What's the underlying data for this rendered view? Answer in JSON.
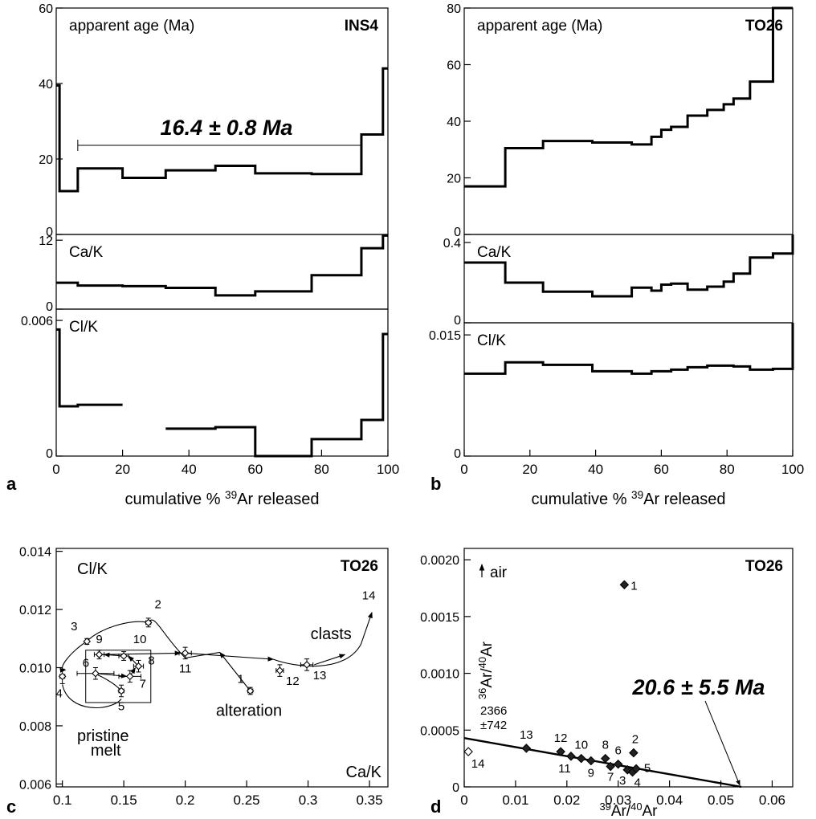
{
  "panel_letters": {
    "a": "a",
    "b": "b",
    "c": "c",
    "d": "d"
  },
  "chart_data": [
    {
      "id": "a",
      "type": "line",
      "sample": "INS4",
      "xlabel": "cumulative % 39Ar released",
      "xlabel_parts": {
        "pre": "cumulative % ",
        "sup": "39",
        "post": "Ar released"
      },
      "xlim": [
        0,
        100
      ],
      "xticks": [
        0,
        20,
        40,
        60,
        80,
        100
      ],
      "plateau": {
        "label": "16.4 ± 0.8 Ma",
        "x_start": 6.5,
        "x_end": 92
      },
      "subplots": [
        {
          "key": "age",
          "label": "apparent age (Ma)",
          "ylim": [
            0,
            60
          ],
          "yticks": [
            0,
            20,
            40,
            60
          ],
          "steps": [
            {
              "x0": 0,
              "x1": 1,
              "y": 39.5
            },
            {
              "x0": 1,
              "x1": 6.5,
              "y": 11.5
            },
            {
              "x0": 6.5,
              "x1": 20,
              "y": 17.5
            },
            {
              "x0": 20,
              "x1": 33,
              "y": 15
            },
            {
              "x0": 33,
              "x1": 48,
              "y": 17
            },
            {
              "x0": 48,
              "x1": 60,
              "y": 18.2
            },
            {
              "x0": 60,
              "x1": 77,
              "y": 16.2
            },
            {
              "x0": 77,
              "x1": 92,
              "y": 16
            },
            {
              "x0": 92,
              "x1": 98.5,
              "y": 26.5
            },
            {
              "x0": 98.5,
              "x1": 100,
              "y": 44
            }
          ]
        },
        {
          "key": "cak",
          "label": "Ca/K",
          "ylim": [
            0,
            13
          ],
          "yticks": [
            0,
            12
          ],
          "steps": [
            {
              "x0": 0,
              "x1": 6.5,
              "y": 4.6
            },
            {
              "x0": 6.5,
              "x1": 20,
              "y": 4.1
            },
            {
              "x0": 20,
              "x1": 33,
              "y": 4.0
            },
            {
              "x0": 33,
              "x1": 48,
              "y": 3.7
            },
            {
              "x0": 48,
              "x1": 60,
              "y": 2.4
            },
            {
              "x0": 60,
              "x1": 77,
              "y": 3.1
            },
            {
              "x0": 77,
              "x1": 92,
              "y": 5.9
            },
            {
              "x0": 92,
              "x1": 98.5,
              "y": 10.6
            },
            {
              "x0": 98.5,
              "x1": 100,
              "y": 12.8
            }
          ]
        },
        {
          "key": "clk",
          "label": "Cl/K",
          "ylim": [
            0,
            0.0065
          ],
          "yticks": [
            0,
            0.006
          ],
          "steps": [
            {
              "x0": 0,
              "x1": 1,
              "y": 0.0056
            },
            {
              "x0": 1,
              "x1": 6.5,
              "y": 0.0022
            },
            {
              "x0": 6.5,
              "x1": 20,
              "y": 0.00227
            },
            {
              "x0": 33,
              "x1": 48,
              "y": 0.00121
            },
            {
              "x0": 48,
              "x1": 60,
              "y": 0.00128
            },
            {
              "x0": 60,
              "x1": 77,
              "y": 0.0
            },
            {
              "x0": 77,
              "x1": 92,
              "y": 0.00075
            },
            {
              "x0": 92,
              "x1": 98.5,
              "y": 0.0016
            },
            {
              "x0": 98.5,
              "x1": 100,
              "y": 0.0054
            }
          ]
        }
      ]
    },
    {
      "id": "b",
      "type": "line",
      "sample": "TO26",
      "xlabel": "cumulative % 39Ar released",
      "xlabel_parts": {
        "pre": "cumulative % ",
        "sup": "39",
        "post": "Ar released"
      },
      "xlim": [
        0,
        100
      ],
      "xticks": [
        0,
        20,
        40,
        60,
        80,
        100
      ],
      "subplots": [
        {
          "key": "age",
          "label": "apparent age (Ma)",
          "ylim": [
            0,
            80
          ],
          "yticks": [
            0,
            20,
            40,
            60,
            80
          ],
          "steps": [
            {
              "x0": 0,
              "x1": 12.5,
              "y": 17
            },
            {
              "x0": 12.5,
              "x1": 24,
              "y": 30.5
            },
            {
              "x0": 24,
              "x1": 39,
              "y": 33
            },
            {
              "x0": 39,
              "x1": 51,
              "y": 32.5
            },
            {
              "x0": 51,
              "x1": 57,
              "y": 31.8
            },
            {
              "x0": 57,
              "x1": 60,
              "y": 34.5
            },
            {
              "x0": 60,
              "x1": 63,
              "y": 37
            },
            {
              "x0": 63,
              "x1": 68,
              "y": 38
            },
            {
              "x0": 68,
              "x1": 74,
              "y": 42
            },
            {
              "x0": 74,
              "x1": 79,
              "y": 44
            },
            {
              "x0": 79,
              "x1": 82,
              "y": 46
            },
            {
              "x0": 82,
              "x1": 87,
              "y": 48
            },
            {
              "x0": 87,
              "x1": 94,
              "y": 54
            },
            {
              "x0": 94,
              "x1": 100,
              "y": 80
            }
          ]
        },
        {
          "key": "cak",
          "label": "Ca/K",
          "ylim": [
            0,
            0.44
          ],
          "yticks": [
            0,
            0.4
          ],
          "steps": [
            {
              "x0": 0,
              "x1": 12.5,
              "y": 0.3
            },
            {
              "x0": 12.5,
              "x1": 24,
              "y": 0.2
            },
            {
              "x0": 24,
              "x1": 39,
              "y": 0.155
            },
            {
              "x0": 39,
              "x1": 51,
              "y": 0.132
            },
            {
              "x0": 51,
              "x1": 57,
              "y": 0.175
            },
            {
              "x0": 57,
              "x1": 60,
              "y": 0.16
            },
            {
              "x0": 60,
              "x1": 63,
              "y": 0.19
            },
            {
              "x0": 63,
              "x1": 68,
              "y": 0.195
            },
            {
              "x0": 68,
              "x1": 74,
              "y": 0.165
            },
            {
              "x0": 74,
              "x1": 79,
              "y": 0.18
            },
            {
              "x0": 79,
              "x1": 82,
              "y": 0.205
            },
            {
              "x0": 82,
              "x1": 87,
              "y": 0.245
            },
            {
              "x0": 87,
              "x1": 94,
              "y": 0.325
            },
            {
              "x0": 94,
              "x1": 100,
              "y": 0.345
            },
            {
              "x0": 100,
              "x1": 100,
              "y": 0.44
            }
          ]
        },
        {
          "key": "clk",
          "label": "Cl/K",
          "ylim": [
            0,
            0.0165
          ],
          "yticks": [
            0,
            0.015
          ],
          "steps": [
            {
              "x0": 0,
              "x1": 12.5,
              "y": 0.0102
            },
            {
              "x0": 12.5,
              "x1": 24,
              "y": 0.0116
            },
            {
              "x0": 24,
              "x1": 39,
              "y": 0.0113
            },
            {
              "x0": 39,
              "x1": 51,
              "y": 0.0105
            },
            {
              "x0": 51,
              "x1": 57,
              "y": 0.0102
            },
            {
              "x0": 57,
              "x1": 63,
              "y": 0.0105
            },
            {
              "x0": 63,
              "x1": 68,
              "y": 0.0107
            },
            {
              "x0": 68,
              "x1": 74,
              "y": 0.011
            },
            {
              "x0": 74,
              "x1": 82,
              "y": 0.0112
            },
            {
              "x0": 82,
              "x1": 87,
              "y": 0.0111
            },
            {
              "x0": 87,
              "x1": 94,
              "y": 0.0107
            },
            {
              "x0": 94,
              "x1": 100,
              "y": 0.0108
            },
            {
              "x0": 100,
              "x1": 100,
              "y": 0.0165
            }
          ]
        }
      ]
    },
    {
      "id": "c",
      "type": "scatter",
      "sample": "TO26",
      "ylabel_inside": "Cl/K",
      "xlabel_inside": "Ca/K",
      "xlim": [
        0.095,
        0.365
      ],
      "ylim": [
        0.0059,
        0.0141
      ],
      "xticks": [
        0.1,
        0.15,
        0.2,
        0.25,
        0.3,
        0.35
      ],
      "xtick_labels": [
        "0.1",
        "0.15",
        "0.2",
        "0.25",
        "0.3",
        "0.35"
      ],
      "yticks": [
        0.006,
        0.008,
        0.01,
        0.012,
        0.014
      ],
      "ytick_labels": [
        "0.006",
        "0.008",
        "0.010",
        "0.012",
        "0.014"
      ],
      "points": [
        {
          "label": "1",
          "x": 0.253,
          "y": 0.0092,
          "xerr": 0.002,
          "yerr": 0.00012
        },
        {
          "label": "2",
          "x": 0.17,
          "y": 0.01155,
          "xerr": 0.002,
          "yerr": 0.00015
        },
        {
          "label": "3",
          "x": 0.12,
          "y": 0.0109,
          "xerr": 0.001,
          "yerr": 0.0001
        },
        {
          "label": "4",
          "x": 0.1,
          "y": 0.0097,
          "xerr": 0.002,
          "yerr": 0.00025
        },
        {
          "label": "5",
          "x": 0.148,
          "y": 0.0092,
          "xerr": 0.002,
          "yerr": 0.0002
        },
        {
          "label": "6",
          "x": 0.127,
          "y": 0.0098,
          "xerr": 0.015,
          "yerr": 0.0002
        },
        {
          "label": "7",
          "x": 0.155,
          "y": 0.0097,
          "xerr": 0.009,
          "yerr": 0.0002
        },
        {
          "label": "8",
          "x": 0.162,
          "y": 0.01005,
          "xerr": 0.004,
          "yerr": 0.0002
        },
        {
          "label": "9",
          "x": 0.13,
          "y": 0.01045,
          "xerr": 0.004,
          "yerr": 0.00015
        },
        {
          "label": "10",
          "x": 0.15,
          "y": 0.0104,
          "xerr": 0.004,
          "yerr": 0.00015
        },
        {
          "label": "11",
          "x": 0.2,
          "y": 0.0105,
          "xerr": 0.005,
          "yerr": 0.0002
        },
        {
          "label": "12",
          "x": 0.277,
          "y": 0.0099,
          "xerr": 0.003,
          "yerr": 0.0002
        },
        {
          "label": "13",
          "x": 0.299,
          "y": 0.0101,
          "xerr": 0.005,
          "yerr": 0.0002
        }
      ],
      "extra_label": {
        "label": "14",
        "x": 0.352,
        "y": 0.0118
      },
      "annotations": {
        "clasts": "clasts",
        "alteration": "alteration",
        "pristine1": "pristine",
        "pristine2": "melt"
      },
      "pristine_box": {
        "x0": 0.119,
        "x1": 0.172,
        "y0": 0.0088,
        "y1": 0.0106
      }
    },
    {
      "id": "d",
      "type": "scatter",
      "sample": "TO26",
      "xlim": [
        0,
        0.064
      ],
      "ylim": [
        0,
        0.0021
      ],
      "xticks": [
        0,
        0.01,
        0.02,
        0.03,
        0.04,
        0.05,
        0.06
      ],
      "xtick_labels": [
        "0",
        "0.01",
        "0.02",
        "0.03",
        "0.04",
        "0.05",
        "0.06"
      ],
      "yticks": [
        0,
        0.0005,
        0.001,
        0.0015,
        0.002
      ],
      "ytick_labels": [
        "0",
        "0.0005",
        "0.0010",
        "0.0015",
        "0.0020"
      ],
      "xlabel_parts": {
        "sup1": "39",
        "t1": "Ar/",
        "sup2": "40",
        "t2": "Ar"
      },
      "ylabel_parts": {
        "sup1": "36",
        "t1": "Ar/",
        "sup2": "40",
        "t2": "Ar"
      },
      "air_label": "air",
      "age_label": "20.6 ± 5.5 Ma",
      "intercept_label": [
        "2366",
        "±742"
      ],
      "isochron": {
        "x0": 0,
        "y0": 0.00043,
        "x1": 0.054,
        "y1": 0
      },
      "age_arrow_target": {
        "x": 0.0537,
        "y": 0
      },
      "points": [
        {
          "label": "1",
          "x": 0.0312,
          "y": 0.00178,
          "filled": true
        },
        {
          "label": "2",
          "x": 0.033,
          "y": 0.0003,
          "filled": true
        },
        {
          "label": "3",
          "x": 0.0318,
          "y": 0.00015,
          "filled": true
        },
        {
          "label": "4",
          "x": 0.0328,
          "y": 0.00013,
          "filled": true
        },
        {
          "label": "5",
          "x": 0.0335,
          "y": 0.00016,
          "filled": true
        },
        {
          "label": "6",
          "x": 0.03,
          "y": 0.0002,
          "filled": true
        },
        {
          "label": "7",
          "x": 0.0285,
          "y": 0.00018,
          "filled": true
        },
        {
          "label": "8",
          "x": 0.0275,
          "y": 0.00025,
          "filled": true
        },
        {
          "label": "9",
          "x": 0.0247,
          "y": 0.00023,
          "filled": true
        },
        {
          "label": "10",
          "x": 0.0228,
          "y": 0.00025,
          "filled": true
        },
        {
          "label": "11",
          "x": 0.0208,
          "y": 0.00027,
          "filled": true
        },
        {
          "label": "12",
          "x": 0.0188,
          "y": 0.00031,
          "filled": true
        },
        {
          "label": "13",
          "x": 0.0121,
          "y": 0.00034,
          "filled": true
        },
        {
          "label": "14",
          "x": 0.0008,
          "y": 0.00031,
          "filled": false
        }
      ]
    }
  ]
}
